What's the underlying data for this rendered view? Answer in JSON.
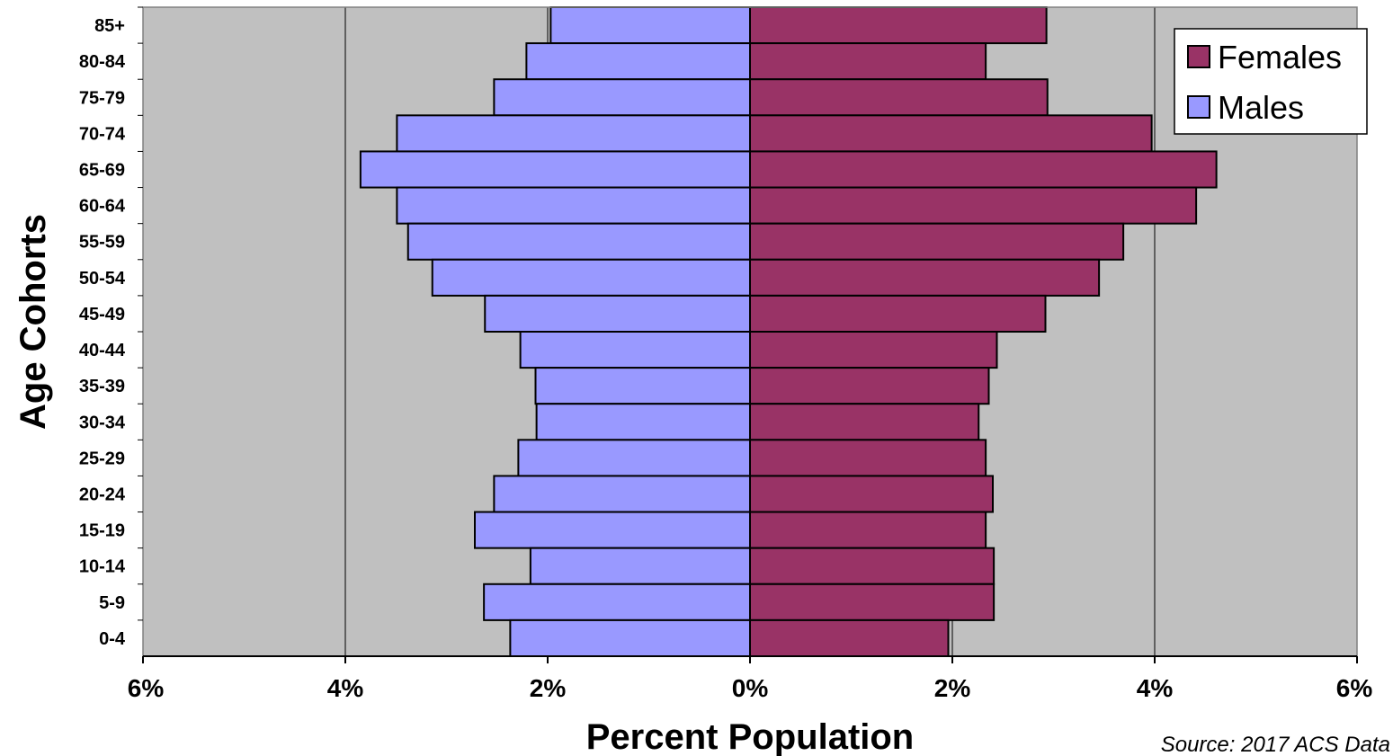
{
  "chart_data": {
    "type": "bar",
    "orientation": "horizontal",
    "layout": "population-pyramid",
    "xlabel": "Percent Population",
    "ylabel": "Age Cohorts",
    "source": "Source: 2017 ACS Data",
    "x_range": [
      -6,
      6
    ],
    "x_ticks": [
      {
        "value": -6,
        "label": "6%"
      },
      {
        "value": -4,
        "label": "4%"
      },
      {
        "value": -2,
        "label": "2%"
      },
      {
        "value": 0,
        "label": "0%"
      },
      {
        "value": 2,
        "label": "2%"
      },
      {
        "value": 4,
        "label": "4%"
      },
      {
        "value": 6,
        "label": "6%"
      }
    ],
    "grid": "vertical",
    "legend_position": "top-right",
    "categories": [
      "85+",
      "80-84",
      "75-79",
      "70-74",
      "65-69",
      "60-64",
      "55-59",
      "50-54",
      "45-49",
      "40-44",
      "35-39",
      "30-34",
      "25-29",
      "20-24",
      "15-19",
      "10-14",
      "5-9",
      "0-4"
    ],
    "series": [
      {
        "name": "Females",
        "color": "#993366",
        "values": [
          2.93,
          2.33,
          2.94,
          3.97,
          4.61,
          4.41,
          3.69,
          3.45,
          2.92,
          2.44,
          2.36,
          2.26,
          2.33,
          2.4,
          2.33,
          2.41,
          2.41,
          1.96
        ]
      },
      {
        "name": "Males",
        "color": "#9999FF",
        "values": [
          1.97,
          2.21,
          2.53,
          3.49,
          3.85,
          3.49,
          3.38,
          3.14,
          2.62,
          2.27,
          2.12,
          2.11,
          2.29,
          2.53,
          2.72,
          2.17,
          2.63,
          2.37
        ]
      }
    ],
    "plot_background": "#C0C0C0"
  }
}
